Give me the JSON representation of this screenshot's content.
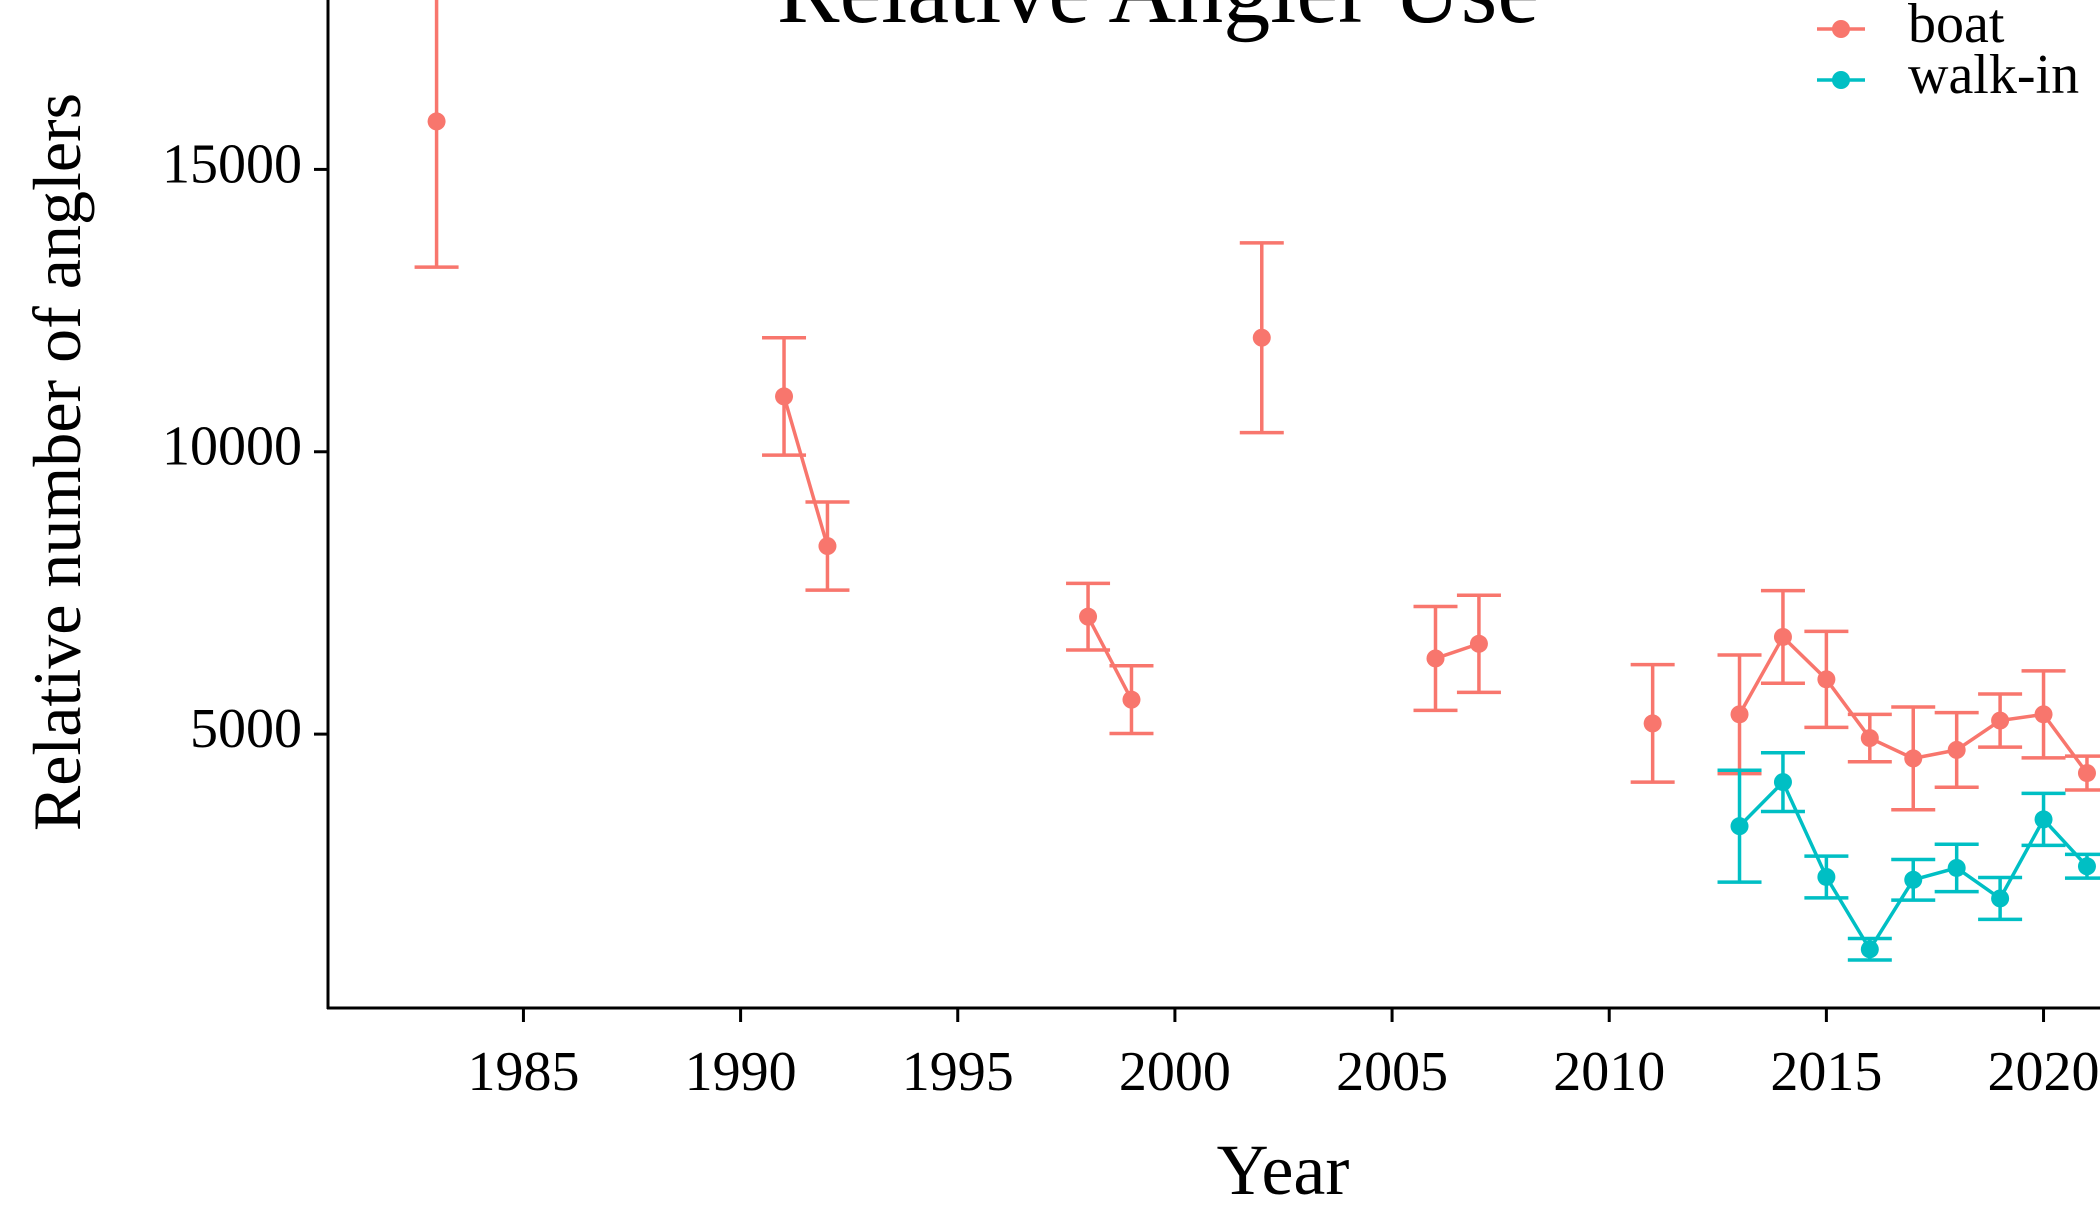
{
  "chart_data": {
    "type": "line",
    "title": "Relative Angler Use",
    "x_label": "Year",
    "y_label": "Relative number of anglers",
    "x": [
      1983,
      1984,
      1985,
      1986,
      1987,
      1988,
      1989,
      1990,
      1991,
      1992,
      1993,
      1994,
      1995,
      1996,
      1997,
      1998,
      1999,
      2000,
      2001,
      2002,
      2003,
      2004,
      2005,
      2006,
      2007,
      2008,
      2009,
      2010,
      2011,
      2012,
      2013,
      2014,
      2015,
      2016,
      2017,
      2018,
      2019,
      2020,
      2021
    ],
    "series": [
      {
        "name": "boat",
        "color": "#F8766D",
        "values": [
          15850,
          null,
          null,
          null,
          null,
          null,
          null,
          null,
          10980,
          8330,
          null,
          null,
          null,
          null,
          null,
          7080,
          5610,
          null,
          null,
          12020,
          null,
          null,
          null,
          6340,
          6600,
          null,
          null,
          null,
          5190,
          null,
          5350,
          6720,
          5970,
          4930,
          4570,
          4720,
          5240,
          5350,
          4310
        ],
        "errors": [
          2580,
          null,
          null,
          null,
          null,
          null,
          null,
          null,
          1040,
          780,
          null,
          null,
          null,
          null,
          null,
          590,
          600,
          null,
          null,
          1680,
          null,
          null,
          null,
          920,
          860,
          null,
          null,
          null,
          1040,
          null,
          1050,
          820,
          850,
          420,
          910,
          660,
          470,
          770,
          300
        ]
      },
      {
        "name": "walk-in",
        "color": "#00BFC4",
        "values": [
          null,
          null,
          null,
          null,
          null,
          null,
          null,
          null,
          null,
          null,
          null,
          null,
          null,
          null,
          null,
          null,
          null,
          null,
          null,
          null,
          null,
          null,
          null,
          null,
          null,
          null,
          null,
          null,
          null,
          null,
          3370,
          4150,
          2470,
          1190,
          2420,
          2630,
          2090,
          3490,
          2660
        ],
        "errors": [
          null,
          null,
          null,
          null,
          null,
          null,
          null,
          null,
          null,
          null,
          null,
          null,
          null,
          null,
          null,
          null,
          null,
          null,
          null,
          null,
          null,
          null,
          null,
          null,
          null,
          null,
          null,
          null,
          null,
          null,
          990,
          520,
          370,
          190,
          360,
          420,
          370,
          460,
          210
        ]
      }
    ],
    "xlim": [
      1980.5,
      2021.3
    ],
    "xticks": [
      1985,
      1990,
      1995,
      2000,
      2005,
      2010,
      2015,
      2020
    ],
    "ylim": [
      150,
      18000
    ],
    "yticks": [
      5000,
      10000,
      15000
    ],
    "legend": "top-right"
  }
}
